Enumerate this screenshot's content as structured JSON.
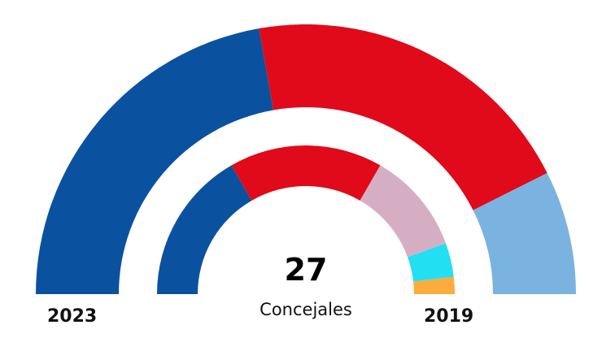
{
  "chart_data": {
    "type": "pie",
    "subtype": "parliament-semicircle",
    "total_seats": 27,
    "total_label": "27",
    "unit_label": "Concejales",
    "rings": [
      {
        "year": "2023",
        "position": "outer",
        "segments": [
          {
            "seats": 12,
            "color": "#0a52a0"
          },
          {
            "seats": 11,
            "color": "#e00a1a"
          },
          {
            "seats": 4,
            "color": "#7ab3e0"
          }
        ]
      },
      {
        "year": "2019",
        "position": "inner",
        "segments": [
          {
            "seats": 9,
            "color": "#0a52a0"
          },
          {
            "seats": 9,
            "color": "#e00a1a"
          },
          {
            "seats": 6,
            "color": "#d6aec3"
          },
          {
            "seats": 2,
            "color": "#22e0f2"
          },
          {
            "seats": 1,
            "color": "#fbac3c"
          }
        ]
      }
    ]
  }
}
